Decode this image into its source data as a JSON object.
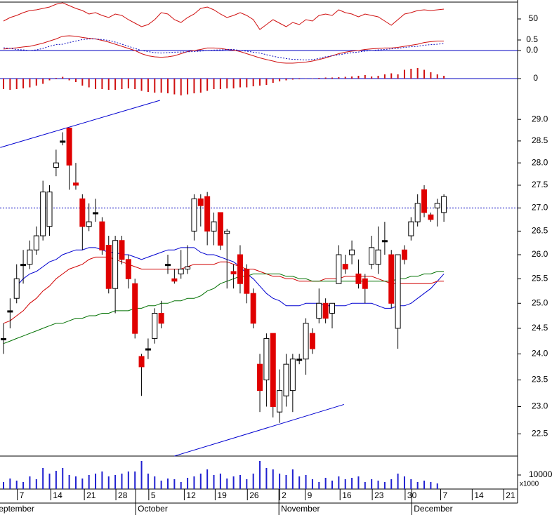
{
  "chart_data": [
    {
      "type": "line",
      "ylim": [
        30,
        75
      ],
      "yticks": [
        50
      ],
      "series": [
        {
          "color": "#d01010",
          "values": [
            47,
            52,
            55,
            59,
            62,
            63,
            65,
            67,
            71,
            73,
            69,
            65,
            62,
            57,
            59,
            55,
            52,
            57,
            55,
            49,
            44,
            39,
            42,
            49,
            59,
            57,
            49,
            45,
            52,
            57,
            65,
            67,
            63,
            57,
            52,
            55,
            59,
            55,
            49,
            35,
            42,
            49,
            44,
            39,
            45,
            42,
            49,
            47,
            55,
            57,
            55,
            63,
            59,
            57,
            53,
            57,
            55,
            53,
            47,
            41,
            49,
            57,
            59,
            62,
            63,
            62,
            63,
            64
          ]
        }
      ]
    },
    {
      "type": "line",
      "ylim": [
        -0.7,
        0.8
      ],
      "yticks": [
        0.5,
        {
          "value": 0,
          "label": "0.0"
        }
      ],
      "reference_line": {
        "value": 0,
        "color": "#0000c0"
      },
      "series": [
        {
          "color": "#d01010",
          "values": [
            0.07,
            0.1,
            0.13,
            0.17,
            0.2,
            0.27,
            0.35,
            0.45,
            0.55,
            0.68,
            0.7,
            0.68,
            0.62,
            0.58,
            0.55,
            0.48,
            0.4,
            0.3,
            0.2,
            0.1,
            0,
            -0.15,
            -0.25,
            -0.3,
            -0.32,
            -0.3,
            -0.25,
            -0.15,
            -0.05,
            0,
            0.05,
            0.12,
            0.12,
            0.1,
            0.05,
            0.02,
            -0.05,
            -0.15,
            -0.25,
            -0.35,
            -0.43,
            -0.5,
            -0.58,
            -0.6,
            -0.6,
            -0.58,
            -0.55,
            -0.5,
            -0.43,
            -0.35,
            -0.25,
            -0.15,
            -0.08,
            -0.03,
            0,
            0.05,
            0.08,
            0.1,
            0.12,
            0.12,
            0.15,
            0.2,
            0.25,
            0.3,
            0.38,
            0.42,
            0.45,
            0.45
          ]
        },
        {
          "color": "#1010c0",
          "dashed": true,
          "values": [
            0.13,
            0.1,
            0.05,
            0.03,
            0,
            0.03,
            0.1,
            0.2,
            0.28,
            0.3,
            0.38,
            0.45,
            0.52,
            0.55,
            0.55,
            0.52,
            0.48,
            0.4,
            0.3,
            0.2,
            0.1,
            0,
            -0.05,
            -0.1,
            -0.12,
            -0.1,
            -0.08,
            -0.07,
            -0.06,
            -0.05,
            -0.03,
            0,
            0.02,
            0.03,
            0.05,
            0.05,
            0,
            -0.03,
            -0.08,
            -0.12,
            -0.2,
            -0.27,
            -0.33,
            -0.38,
            -0.42,
            -0.43,
            -0.45,
            -0.43,
            -0.38,
            -0.3,
            -0.25,
            -0.2,
            -0.15,
            -0.1,
            -0.07,
            -0.03,
            0,
            0.03,
            0.05,
            0.08,
            0.1,
            0.15,
            0.18,
            0.2,
            0.25,
            0.28,
            0.3,
            0.33
          ]
        }
      ]
    },
    {
      "type": "bar",
      "ylim": [
        -0.5,
        0.3
      ],
      "yticks": [
        0
      ],
      "color": "#d01010",
      "reference_line": {
        "value": 0,
        "color": "#0000c0"
      },
      "values": [
        -0.3,
        -0.32,
        -0.3,
        -0.28,
        -0.25,
        -0.2,
        -0.15,
        -0.05,
        0.02,
        0.05,
        -0.05,
        -0.1,
        -0.2,
        -0.25,
        -0.3,
        -0.3,
        -0.32,
        -0.32,
        -0.3,
        -0.28,
        -0.3,
        -0.35,
        -0.38,
        -0.4,
        -0.4,
        -0.42,
        -0.45,
        -0.48,
        -0.45,
        -0.42,
        -0.4,
        -0.35,
        -0.3,
        -0.3,
        -0.28,
        -0.28,
        -0.25,
        -0.25,
        -0.22,
        -0.2,
        -0.18,
        -0.12,
        -0.08,
        -0.05,
        -0.03,
        -0.02,
        -0.01,
        0.01,
        0.02,
        0.03,
        0.03,
        0.04,
        0.05,
        0.06,
        0.08,
        0.1,
        0.06,
        0.08,
        0.12,
        0.15,
        0.12,
        0.25,
        0.28,
        0.3,
        0.25,
        0.18,
        0.12,
        0.08
      ]
    },
    {
      "type": "candlestick",
      "ylim": [
        22.1,
        29.5
      ],
      "log_scale": true,
      "yticks": [
        {
          "value": 29,
          "label": "29.0"
        },
        28.5,
        {
          "value": 28,
          "label": "28.0"
        },
        27.5,
        {
          "value": 27,
          "label": "27.0"
        },
        26.5,
        {
          "value": 26,
          "label": "26.0"
        },
        25.5,
        {
          "value": 25,
          "label": "25.0"
        },
        24.5,
        {
          "value": 24,
          "label": "24.0"
        },
        23.5,
        {
          "value": 23,
          "label": "23.0"
        },
        22.5
      ],
      "colors": {
        "up": "#ffffff",
        "down": "#e00000",
        "flat": "#000000"
      },
      "open": [
        24.3,
        24.85,
        25.1,
        25.8,
        25.8,
        26.1,
        26.4,
        26.6,
        27.9,
        28.5,
        28.8,
        27.55,
        27.2,
        26.6,
        26.9,
        26.7,
        26.2,
        25.3,
        26.3,
        25.9,
        25.4,
        23.95,
        24.1,
        24.3,
        24.8,
        25.8,
        25.5,
        25.6,
        25.7,
        26.5,
        27.2,
        27.25,
        26.5,
        26.9,
        26.45,
        25.65,
        26.0,
        25.7,
        25.2,
        23.8,
        23.5,
        24.4,
        22.9,
        23.2,
        23.3,
        23.9,
        23.9,
        24.4,
        24.7,
        25.0,
        24.8,
        25.4,
        25.8,
        26.0,
        25.6,
        25.5,
        25.8,
        25.8,
        26.3,
        26.0,
        24.5,
        26.1,
        26.4,
        26.7,
        27.4,
        26.85,
        27.0,
        26.9
      ],
      "high": [
        24.6,
        25.1,
        25.8,
        26.1,
        26.3,
        26.6,
        27.6,
        27.5,
        28.3,
        28.7,
        28.8,
        28.0,
        27.3,
        27.1,
        27.2,
        26.8,
        26.4,
        26.4,
        26.4,
        26.0,
        25.5,
        24.0,
        24.3,
        24.9,
        25.05,
        26.0,
        25.7,
        26.1,
        26.2,
        27.3,
        27.3,
        27.35,
        26.9,
        26.9,
        26.55,
        25.8,
        26.2,
        25.8,
        25.3,
        24.0,
        24.4,
        24.4,
        23.7,
        24.0,
        24.0,
        24.0,
        24.7,
        24.5,
        25.3,
        25.1,
        25.0,
        26.2,
        26.0,
        26.3,
        25.9,
        25.6,
        26.4,
        26.6,
        26.7,
        26.1,
        26.0,
        26.2,
        26.8,
        27.3,
        27.5,
        26.9,
        27.2,
        27.3
      ],
      "low": [
        24.0,
        24.5,
        25.0,
        25.4,
        25.7,
        26.0,
        26.3,
        26.4,
        27.7,
        28.4,
        27.4,
        27.4,
        26.1,
        26.5,
        26.7,
        26.0,
        25.2,
        24.8,
        25.8,
        25.3,
        24.3,
        23.2,
        23.9,
        24.2,
        24.5,
        25.6,
        25.4,
        25.5,
        25.6,
        26.3,
        26.6,
        26.2,
        26.2,
        26.1,
        25.3,
        25.3,
        25.2,
        25.0,
        24.5,
        22.9,
        23.0,
        22.8,
        22.7,
        23.0,
        22.9,
        23.8,
        23.6,
        24.0,
        24.6,
        24.6,
        24.5,
        25.4,
        25.6,
        25.8,
        25.3,
        25.0,
        25.7,
        25.6,
        26.0,
        24.9,
        24.1,
        25.8,
        26.3,
        26.6,
        26.8,
        26.7,
        26.6,
        26.7
      ],
      "close": [
        24.3,
        24.85,
        25.5,
        25.8,
        26.1,
        26.4,
        27.35,
        27.35,
        28.0,
        28.5,
        27.95,
        27.5,
        26.6,
        26.7,
        26.9,
        26.1,
        25.3,
        26.3,
        25.9,
        25.5,
        24.4,
        23.75,
        24.1,
        24.8,
        24.6,
        25.8,
        25.45,
        25.7,
        25.75,
        27.2,
        27.05,
        26.5,
        26.7,
        26.2,
        26.5,
        25.6,
        25.4,
        25.2,
        24.6,
        23.3,
        24.3,
        23.0,
        23.3,
        23.8,
        23.9,
        23.9,
        24.6,
        24.1,
        25.0,
        24.7,
        25.0,
        26.0,
        25.7,
        26.1,
        25.4,
        25.3,
        26.15,
        26.1,
        26.3,
        25.0,
        26.0,
        25.9,
        26.7,
        27.1,
        26.9,
        26.75,
        27.1,
        27.25
      ],
      "series": [
        {
          "color": "#0000d0",
          "values": [
            null,
            null,
            25.35,
            25.5,
            25.6,
            25.65,
            25.75,
            25.85,
            25.9,
            26.0,
            26.05,
            26.1,
            26.1,
            26.15,
            26.15,
            26.1,
            26.05,
            26.05,
            26.0,
            26.0,
            25.95,
            25.9,
            25.95,
            26.0,
            26.05,
            26.1,
            26.1,
            26.15,
            26.15,
            26.15,
            26.05,
            26.0,
            26.0,
            25.95,
            25.9,
            25.85,
            25.75,
            25.6,
            25.5,
            25.35,
            25.2,
            25.1,
            25.05,
            24.95,
            24.95,
            24.95,
            25.0,
            25.0,
            25.0,
            24.95,
            24.95,
            24.95,
            24.95,
            25.0,
            25.0,
            25.0,
            25.0,
            24.95,
            24.9,
            24.9,
            24.95,
            24.95,
            25.0,
            25.1,
            25.2,
            25.3,
            25.45,
            25.6
          ]
        },
        {
          "color": "#d00000",
          "values": [
            24.6,
            24.65,
            24.75,
            24.85,
            25.0,
            25.1,
            25.25,
            25.35,
            25.5,
            25.6,
            25.7,
            25.75,
            25.8,
            25.9,
            25.95,
            25.95,
            25.95,
            25.9,
            25.85,
            25.8,
            25.75,
            25.7,
            25.7,
            25.7,
            25.7,
            25.7,
            25.7,
            25.7,
            25.75,
            25.8,
            25.8,
            25.8,
            25.8,
            25.85,
            25.85,
            25.8,
            25.75,
            25.7,
            25.7,
            25.65,
            25.6,
            25.55,
            25.55,
            25.5,
            25.5,
            25.45,
            25.45,
            25.45,
            25.45,
            25.5,
            25.5,
            25.5,
            25.55,
            25.55,
            25.55,
            25.55,
            25.55,
            25.5,
            25.45,
            25.4,
            25.4,
            25.4,
            25.4,
            25.4,
            25.4,
            25.4,
            25.45,
            25.45
          ]
        },
        {
          "color": "#007000",
          "values": [
            24.2,
            24.25,
            24.3,
            24.35,
            24.4,
            24.45,
            24.5,
            24.55,
            24.6,
            24.6,
            24.65,
            24.7,
            24.7,
            24.75,
            24.75,
            24.8,
            24.8,
            24.85,
            24.85,
            24.85,
            24.9,
            24.9,
            24.95,
            24.95,
            25.0,
            25.0,
            25.05,
            25.05,
            25.1,
            25.1,
            25.15,
            25.25,
            25.3,
            25.4,
            25.45,
            25.5,
            25.55,
            25.55,
            25.6,
            25.6,
            25.6,
            25.6,
            25.6,
            25.55,
            25.55,
            25.5,
            25.5,
            25.45,
            25.45,
            25.45,
            25.45,
            25.45,
            25.45,
            25.45,
            25.45,
            25.45,
            25.45,
            25.45,
            25.45,
            25.45,
            25.5,
            25.5,
            25.55,
            25.55,
            25.6,
            25.6,
            25.65,
            25.65
          ]
        }
      ],
      "trend_lines": [
        {
          "color": "#0000d0",
          "x": [
            -0.5,
            23.8
          ],
          "y": [
            28.35,
            29.45
          ]
        },
        {
          "color": "#0000d0",
          "x": [
            26,
            51.8
          ],
          "y": [
            22.1,
            23.04
          ]
        }
      ],
      "reference_line": {
        "value": 27,
        "color": "#0000c0",
        "dashed": true
      }
    },
    {
      "type": "bar",
      "ylim": [
        0,
        22500
      ],
      "yticks": [
        10000
      ],
      "color": "#2020d0",
      "unit_label": "x1000",
      "values": [
        5000,
        7500,
        6000,
        5000,
        9000,
        7000,
        15000,
        11000,
        13000,
        15000,
        10000,
        9000,
        7500,
        10000,
        11000,
        12500,
        9000,
        10000,
        11000,
        12500,
        12500,
        20000,
        11000,
        9000,
        6000,
        7500,
        7000,
        5000,
        8000,
        9000,
        11000,
        14000,
        10000,
        11000,
        7500,
        9000,
        10000,
        7000,
        11000,
        20000,
        15000,
        14000,
        11000,
        10000,
        14000,
        9000,
        10000,
        7000,
        5000,
        8000,
        6000,
        9000,
        7000,
        8000,
        9000,
        5000,
        7000,
        6000,
        5000,
        7000,
        11000,
        9000,
        7000,
        5000,
        6000,
        5000,
        4000,
        0
      ],
      "xticks": [
        {
          "value": 2.1,
          "label": "7"
        },
        {
          "value": 7.2,
          "label": "14"
        },
        {
          "value": 12.3,
          "label": "21"
        },
        {
          "value": 17.1,
          "label": "28"
        },
        {
          "value": 22.1,
          "label": "5"
        },
        {
          "value": 27.5,
          "label": "12"
        },
        {
          "value": 32.2,
          "label": "19"
        },
        {
          "value": 37.1,
          "label": "26"
        },
        {
          "value": 42.0,
          "label": "2"
        },
        {
          "value": 45.9,
          "label": "9"
        },
        {
          "value": 51.2,
          "label": "16"
        },
        {
          "value": 56.1,
          "label": "23"
        },
        {
          "value": 61.1,
          "label": "30"
        },
        {
          "value": 66.5,
          "label": "7"
        },
        {
          "value": 71.3,
          "label": "14"
        },
        {
          "value": 76.1,
          "label": "21"
        }
      ],
      "month_ticks": [
        {
          "value": -1.9,
          "label": "September"
        },
        {
          "value": 20.1,
          "label": "October"
        },
        {
          "value": 41.9,
          "label": "November"
        },
        {
          "value": 62.1,
          "label": "December"
        }
      ]
    }
  ]
}
